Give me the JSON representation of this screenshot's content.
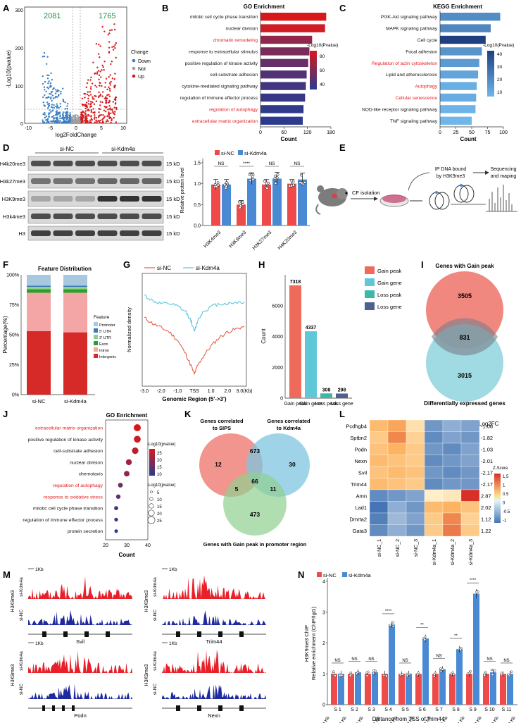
{
  "colors": {
    "red": "#d7191c",
    "blue": "#3a7fc4",
    "gray": "#9e9e9e",
    "darkblue": "#1f1f9e",
    "green": "#2ca02c",
    "pink": "#ee6a6a",
    "teal": "#5fc8d0",
    "navy": "#4f5f8f"
  },
  "panelA": {
    "letter": "A",
    "ylabel": "-Log10(pvalue)",
    "xlabel": "log2FoldChange",
    "down_count": "2081",
    "up_count": "1765",
    "yticks": [
      "0",
      "100",
      "200",
      "300"
    ],
    "xticks": [
      "-10",
      "-5",
      "0",
      "5",
      "10"
    ],
    "legend_title": "Change",
    "legend": [
      "Down",
      "Not",
      "Up"
    ],
    "chart_data": {
      "type": "scatter",
      "title": "",
      "xlabel": "log2FoldChange",
      "ylabel": "-Log10(pvalue)",
      "xlim": [
        -10,
        10
      ],
      "ylim": [
        0,
        310
      ],
      "series": [
        {
          "name": "Down",
          "count": 2081
        },
        {
          "name": "Not"
        },
        {
          "name": "Up",
          "count": 1765
        }
      ]
    }
  },
  "panelB": {
    "letter": "B",
    "title": "GO Enrichment",
    "xlabel": "Count",
    "xticks": [
      "0",
      "60",
      "120",
      "180"
    ],
    "legend_title": "-Log10(Pvalue)",
    "legend_ticks": [
      "80",
      "60",
      "40"
    ],
    "chart_data": {
      "type": "bar",
      "title": "GO Enrichment",
      "xlabel": "Count",
      "ylabel": "",
      "xlim": [
        0,
        180
      ],
      "categories": [
        "mitotic cell cycle phase transition",
        "nuclear division",
        "chromatin remodeling",
        "response to extracellular stimulus",
        "positive regulation of kinase activity",
        "cell-substrate adhesion",
        "cytokine-mediated signaling pathway",
        "regulation of immune effector process",
        "regulation of autophagy",
        "extracellular matrix organization"
      ],
      "values": [
        168,
        165,
        132,
        125,
        122,
        118,
        116,
        114,
        110,
        108
      ],
      "neglog10p": [
        95,
        92,
        70,
        62,
        55,
        48,
        42,
        38,
        36,
        34
      ],
      "highlight": [
        false,
        false,
        true,
        false,
        false,
        false,
        false,
        false,
        true,
        true
      ]
    }
  },
  "panelC": {
    "letter": "C",
    "title": "KEGG Enrichment",
    "xlabel": "Count",
    "xticks": [
      "0",
      "25",
      "50",
      "75",
      "100"
    ],
    "legend_title": "-Log10(Pvalue)",
    "legend_ticks": [
      "40",
      "30",
      "20",
      "10"
    ],
    "chart_data": {
      "type": "bar",
      "title": "KEGG Enrichment",
      "xlabel": "Count",
      "ylabel": "",
      "xlim": [
        0,
        100
      ],
      "categories": [
        "PI3K-Akt signaling pathway",
        "MAPK signaling pathway",
        "Cell cycle",
        "Focal adhesion",
        "Regulation of actin cytoskeleton",
        "Lipid and atherosclerosis",
        "Autophagy",
        "Cellular senescence",
        "NOD-like receptor signaling pathway",
        "TNF signaling pathway"
      ],
      "values": [
        95,
        80,
        72,
        66,
        62,
        60,
        58,
        57,
        56,
        50
      ],
      "neglog10p": [
        22,
        24,
        45,
        20,
        18,
        15,
        12,
        13,
        11,
        10
      ],
      "highlight": [
        false,
        false,
        false,
        false,
        true,
        false,
        true,
        true,
        false,
        false
      ]
    }
  },
  "panelD": {
    "letter": "D",
    "group1": "si-NC",
    "group2": "si-Kdm4a",
    "blot_labels": [
      "H4k20me3",
      "H3k27me3",
      "H3K9me3",
      "H3k4me3",
      "H3"
    ],
    "kd": "15 kD",
    "ylabel": "Relative protein level",
    "ns": "NS",
    "sig": "****",
    "yticks": [
      "0.0",
      "0.5",
      "1.0",
      "1.5"
    ],
    "chart_data": {
      "type": "bar",
      "title": "",
      "xlabel": "",
      "ylabel": "Relative protein level",
      "ylim": [
        0,
        1.6
      ],
      "categories": [
        "H3K4me3",
        "H3K9me3",
        "H3K27me3",
        "H4K20me3"
      ],
      "series": [
        {
          "name": "si-NC",
          "values": [
            0.98,
            0.5,
            0.98,
            1.0
          ],
          "err": [
            0.12,
            0.1,
            0.12,
            0.1
          ]
        },
        {
          "name": "si-Kdm4a",
          "values": [
            0.98,
            1.12,
            1.12,
            1.1
          ],
          "err": [
            0.12,
            0.14,
            0.15,
            0.15
          ]
        }
      ]
    }
  },
  "panelE": {
    "letter": "E",
    "step1": "CF isolation",
    "step2_l1": "IP DNA bound",
    "step2_l2": "by H3K9me3",
    "step3_l1": "Sequencing",
    "step3_l2": "and maping"
  },
  "panelF": {
    "letter": "F",
    "title": "Feature Distribution",
    "ylabel": "Percentage(%)",
    "yticks": [
      "0%",
      "25%",
      "50%",
      "75%",
      "100%"
    ],
    "legend_title": "Feature",
    "legend": [
      "Promoter",
      "5' UTR",
      "3' UTR",
      "Exon",
      "Intron",
      "Intergenic"
    ],
    "legend_colors": [
      "#a8c8e0",
      "#3a78b8",
      "#8fd08a",
      "#2ca02c",
      "#f4a6a6",
      "#d62a28"
    ],
    "chart_data": {
      "type": "bar",
      "title": "Feature Distribution",
      "xlabel": "",
      "ylabel": "Percentage(%)",
      "categories": [
        "si-NC",
        "si-Kdm4a"
      ],
      "series": [
        {
          "name": "Intergenic",
          "values": [
            53,
            52
          ]
        },
        {
          "name": "Intron",
          "values": [
            32,
            33
          ]
        },
        {
          "name": "Exon",
          "values": [
            3,
            3
          ]
        },
        {
          "name": "3' UTR",
          "values": [
            2,
            2
          ]
        },
        {
          "name": "5' UTR",
          "values": [
            1,
            1
          ]
        },
        {
          "name": "Promoter",
          "values": [
            9,
            9
          ]
        }
      ]
    }
  },
  "panelG": {
    "letter": "G",
    "legend": [
      "si-NC",
      "si-Kdm4a"
    ],
    "ylabel": "Normalized density",
    "xlabel": "Genomic Region (5'->3')",
    "xticks": [
      "-3.0",
      "-2.0",
      "-1.0",
      "TSS",
      "1.0",
      "2.0",
      "3.0(Kb)"
    ],
    "chart_data": {
      "type": "line",
      "title": "",
      "xlabel": "Genomic Region (5'->3')",
      "ylabel": "Normalized density",
      "xlim": [
        -3,
        3
      ],
      "x": [
        -3,
        -2.5,
        -2,
        -1.5,
        -1,
        -0.5,
        -0.2,
        0,
        0.2,
        0.5,
        1,
        1.5,
        2,
        2.5,
        3
      ],
      "series": [
        {
          "name": "si-NC",
          "values": [
            0.62,
            0.58,
            0.55,
            0.52,
            0.46,
            0.36,
            0.28,
            0.22,
            0.28,
            0.34,
            0.42,
            0.48,
            0.52,
            0.54,
            0.56
          ]
        },
        {
          "name": "si-Kdm4a",
          "values": [
            0.78,
            0.74,
            0.72,
            0.72,
            0.7,
            0.66,
            0.6,
            0.52,
            0.6,
            0.66,
            0.7,
            0.72,
            0.72,
            0.73,
            0.73
          ]
        }
      ]
    }
  },
  "panelH": {
    "letter": "H",
    "ylabel": "Count",
    "yticks": [
      "0",
      "2000",
      "4000",
      "6000"
    ],
    "legend": [
      "Gain peak",
      "Gain gene",
      "Loss peak",
      "Loss gene"
    ],
    "chart_data": {
      "type": "bar",
      "title": "",
      "xlabel": "",
      "ylabel": "Count",
      "ylim": [
        0,
        8000
      ],
      "categories": [
        "Gain peak",
        "Gain gene",
        "Loss peak",
        "Loss gene"
      ],
      "values": [
        7318,
        4337,
        308,
        298
      ]
    }
  },
  "panelI": {
    "letter": "I",
    "top_label": "Genes with Gain peak",
    "bottom_label": "Differentially expressed genes",
    "only_top": "3505",
    "overlap": "831",
    "only_bottom": "3015"
  },
  "panelJ": {
    "letter": "J",
    "title": "GO Enrichment",
    "xlabel": "Count",
    "xticks": [
      "20",
      "30",
      "40"
    ],
    "legend_title": "-Log10(pvalue)",
    "legend_ticks": [
      "25",
      "20",
      "15",
      "10"
    ],
    "size_title": "-Log10(pvalue)",
    "size_ticks": [
      "5",
      "10",
      "15",
      "20",
      "25"
    ],
    "chart_data": {
      "type": "scatter",
      "title": "GO Enrichment",
      "xlabel": "Count",
      "ylabel": "",
      "xlim": [
        20,
        40
      ],
      "categories": [
        "extracellular matrix organization",
        "positive regulation of kinase activity",
        "cell-substrate adhesion",
        "nuclear division",
        "chemotaxis",
        "regulation of autophagy",
        "response to oxidative stress",
        "mitotic cell cycle phase transition",
        "regulation of immune effector process",
        "protein secretion"
      ],
      "values": [
        35,
        35,
        34,
        31,
        30,
        27,
        26,
        25,
        25,
        25
      ],
      "neglog10p": [
        28,
        27,
        25,
        22,
        20,
        16,
        14,
        12,
        10,
        9
      ],
      "highlight": [
        true,
        false,
        false,
        false,
        false,
        true,
        true,
        false,
        false,
        false
      ]
    }
  },
  "panelK": {
    "letter": "K",
    "set1": "Genes correlated to SIPS",
    "set1_l1": "Genes correlated",
    "set1_l2": "to SIPS",
    "set2_l1": "Genes correlated",
    "set2_l2": "to Kdm4a",
    "set3": "Genes with Gain peak in promoter region",
    "n_12": "12",
    "n_673": "673",
    "n_30": "30",
    "n_5": "5",
    "n_66": "66",
    "n_11": "11",
    "n_473": "473"
  },
  "panelL": {
    "letter": "L",
    "title": "Log2FC",
    "legend_title": "Z-Score",
    "legend_ticks": [
      "1.5",
      "1",
      "0.5",
      "0",
      "-0.5",
      "-1"
    ],
    "columns": [
      "si-NC_1",
      "si-NC_2",
      "si-NC_3",
      "si-Kdm4a_1",
      "si-Kdm4a_2",
      "si-Kdm4a_3"
    ],
    "genes": [
      "Pcdhgb4",
      "Sptbn2",
      "Podn",
      "Nexn",
      "Svil",
      "Trim44",
      "Amn",
      "Lad1",
      "Dmrta2",
      "Gata3"
    ],
    "log2fc": [
      "-1.08",
      "-1.82",
      "-1.03",
      "-2.01",
      "-2.17",
      "-2.17",
      "2.87",
      "2.02",
      "1.12",
      "1.22"
    ],
    "chart_data": {
      "type": "heatmap",
      "title": "Log2FC",
      "xlabel": "",
      "ylabel": "",
      "rows": [
        "Pcdhgb4",
        "Sptbn2",
        "Podn",
        "Nexn",
        "Svil",
        "Trim44",
        "Amn",
        "Lad1",
        "Dmrta2",
        "Gata3"
      ],
      "cols": [
        "si-NC_1",
        "si-NC_2",
        "si-NC_3",
        "si-Kdm4a_1",
        "si-Kdm4a_2",
        "si-Kdm4a_3"
      ],
      "z": [
        [
          0.8,
          1.0,
          0.3,
          -0.8,
          -0.6,
          -0.7
        ],
        [
          0.6,
          1.2,
          0.5,
          -0.9,
          -0.7,
          -0.8
        ],
        [
          0.7,
          0.9,
          0.6,
          -0.8,
          -0.9,
          -0.7
        ],
        [
          0.8,
          0.7,
          0.6,
          -0.9,
          -0.8,
          -0.7
        ],
        [
          0.7,
          0.8,
          0.7,
          -0.8,
          -0.9,
          -0.8
        ],
        [
          0.8,
          0.7,
          0.6,
          -0.9,
          -0.8,
          -0.8
        ],
        [
          -0.9,
          -0.8,
          -0.7,
          0.1,
          0.2,
          1.8
        ],
        [
          -1.1,
          -0.6,
          -0.8,
          0.8,
          0.9,
          0.7
        ],
        [
          -1.0,
          -0.5,
          -0.7,
          0.6,
          1.2,
          0.5
        ],
        [
          -0.9,
          -0.6,
          -0.8,
          0.6,
          1.3,
          0.6
        ]
      ]
    }
  },
  "panelM": {
    "letter": "M",
    "scale": "1Kb",
    "track_top": "si-Kdm4a",
    "track_bot": "si-NC",
    "mark": "H3K9me3",
    "genes": [
      "Svil",
      "Trim44",
      "Podn",
      "Nexn"
    ]
  },
  "panelN": {
    "letter": "N",
    "group1": "si-NC",
    "group2": "si-Kdm4a",
    "ylabel_l1": "H3K9me3 ChIP",
    "ylabel_l2": "Relative enrichment (ChIP/IgG)",
    "xlabel": "Distance from TSS of  Trim44",
    "yticks": [
      "0",
      "1",
      "2",
      "3",
      "4"
    ],
    "ns": "NS",
    "dist_ticks": [
      "-2.0 Kb",
      "-1.8 Kb",
      "-1.6 Kb",
      "-1.4 Kb",
      "-1.2 Kb",
      "-1.0 Kb",
      "-0.8 Kb",
      "-0.6 Kb",
      "-0.4 Kb",
      "-0.2 Kb",
      "0 Kb",
      "0.2 Kb"
    ],
    "chart_data": {
      "type": "bar",
      "title": "",
      "xlabel": "Distance from TSS of  Trim44",
      "ylabel": "Relative enrichment (ChIP/IgG)",
      "ylim": [
        0,
        4
      ],
      "categories": [
        "S 1",
        "S 2",
        "S 3",
        "S 4",
        "S 5",
        "S 6",
        "S 7",
        "S 8",
        "S 9",
        "S 10",
        "S 11"
      ],
      "sig": [
        "NS",
        "NS",
        "NS",
        "****",
        "NS",
        "**",
        "NS",
        "**",
        "****",
        "NS",
        "NS"
      ],
      "series": [
        {
          "name": "si-NC",
          "values": [
            1.0,
            1.0,
            1.0,
            1.0,
            1.0,
            1.0,
            1.0,
            1.0,
            1.0,
            1.0,
            1.0
          ],
          "err": [
            0.1,
            0.08,
            0.1,
            0.1,
            0.08,
            0.1,
            0.1,
            0.08,
            0.1,
            0.08,
            0.08
          ]
        },
        {
          "name": "si-Kdm4a",
          "values": [
            1.0,
            1.05,
            1.05,
            2.6,
            1.0,
            2.15,
            1.15,
            1.8,
            3.6,
            1.05,
            1.0
          ],
          "err": [
            0.1,
            0.1,
            0.1,
            0.1,
            0.1,
            0.12,
            0.1,
            0.1,
            0.15,
            0.1,
            0.1
          ]
        }
      ]
    }
  }
}
